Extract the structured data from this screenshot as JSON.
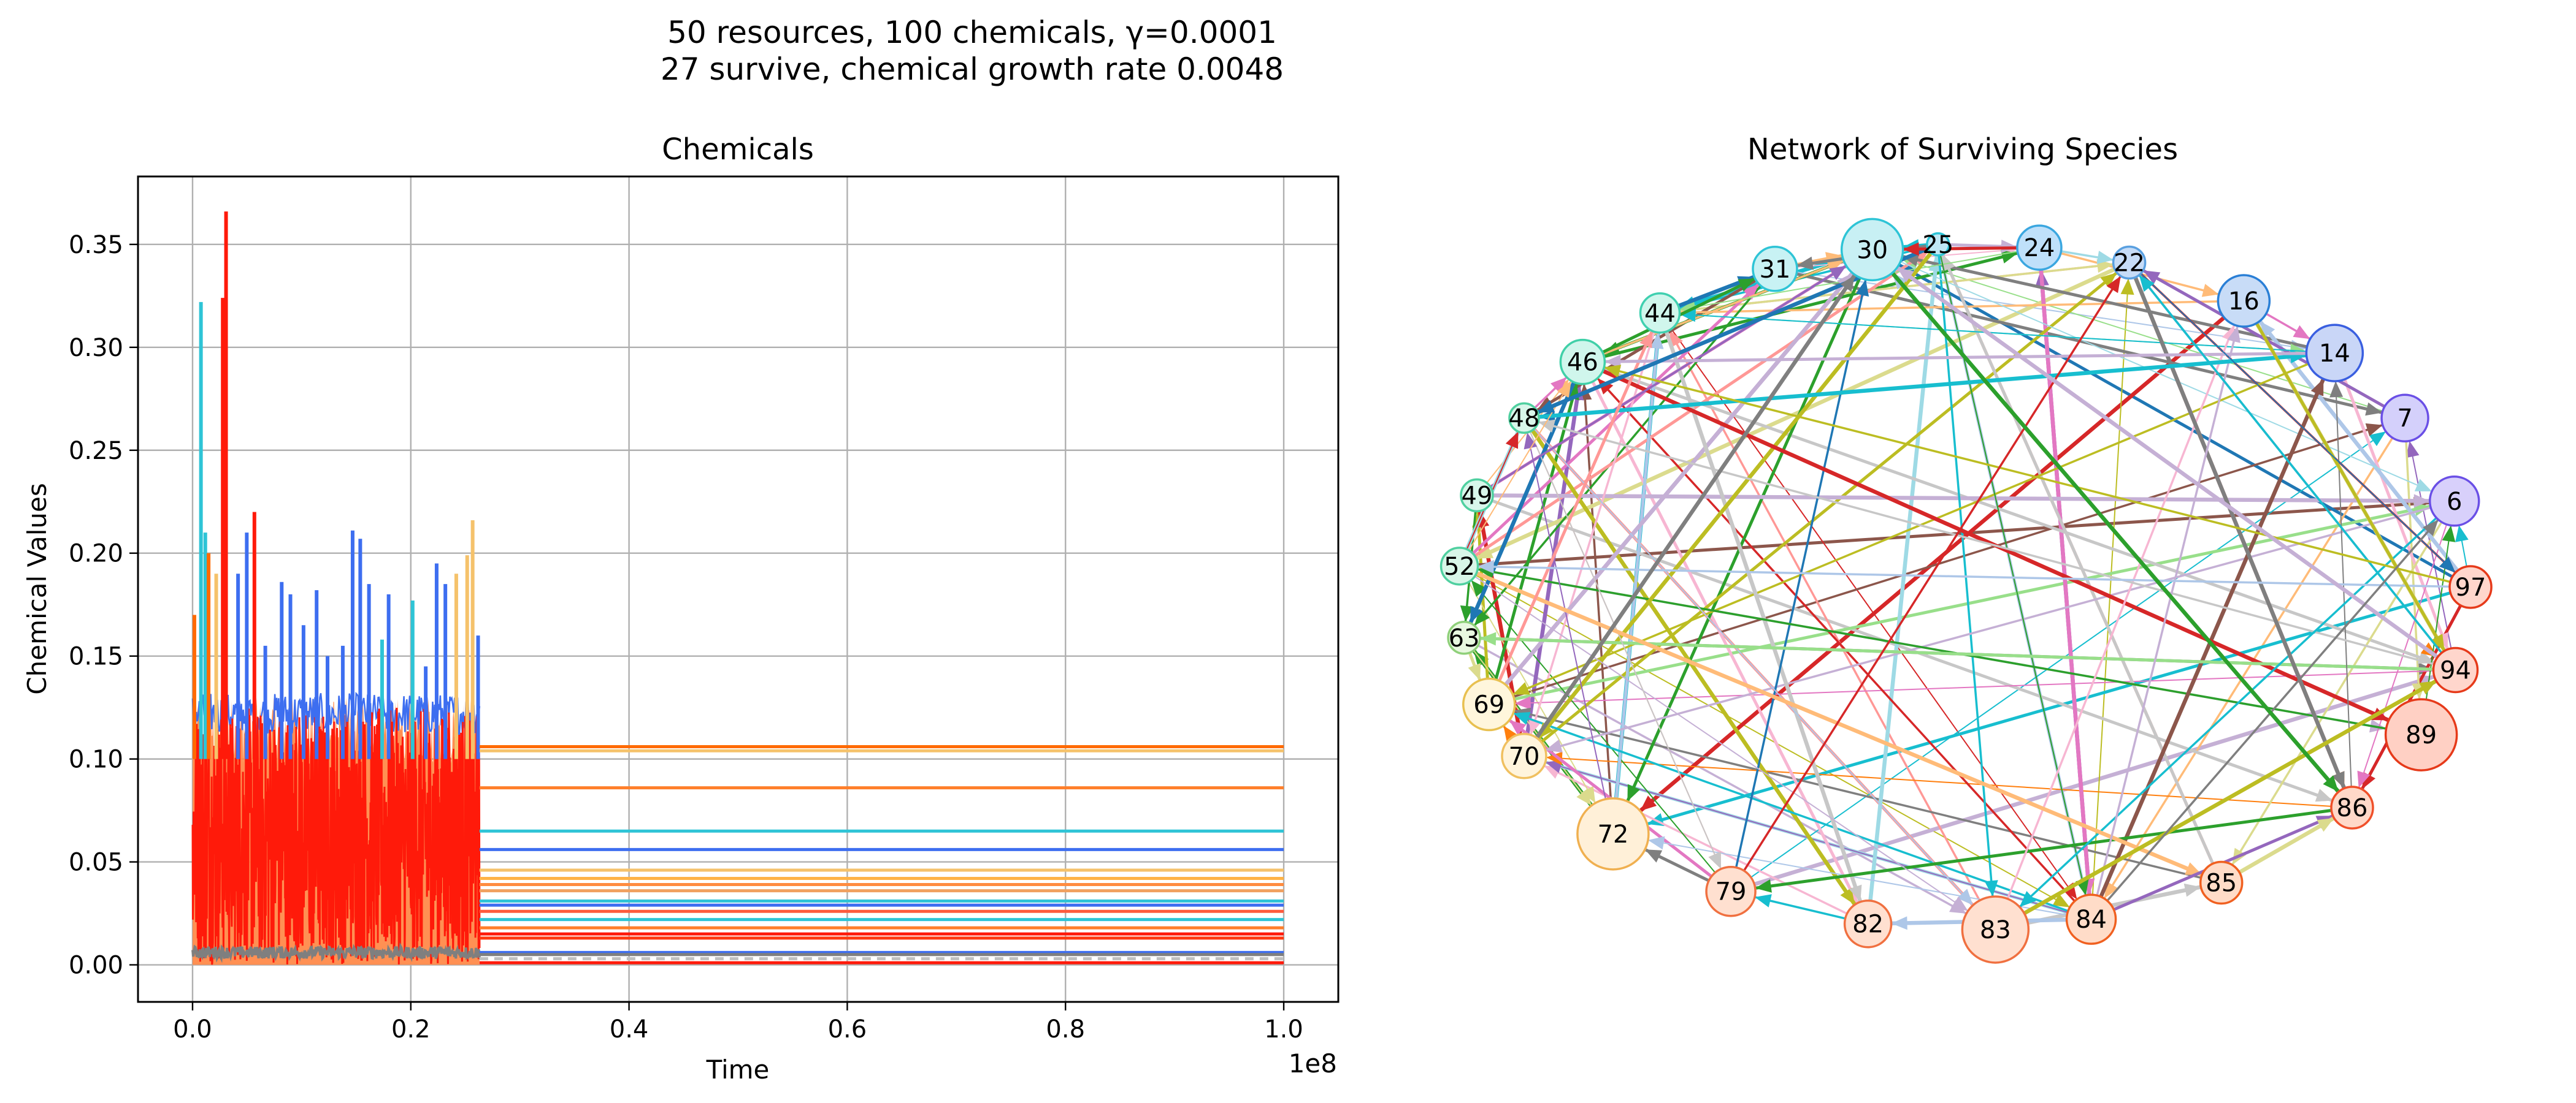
{
  "figure": {
    "title_line1": "50 resources, 100 chemicals, γ=0.0001",
    "title_line2": "27 survive, chemical growth rate 0.0048"
  },
  "chart_data": [
    {
      "type": "line",
      "title": "Chemicals",
      "xlabel": "Time",
      "ylabel": "Chemical Values",
      "x_offset_label": "1e8",
      "xlim": [
        -0.05,
        1.05
      ],
      "ylim": [
        -0.018,
        0.383
      ],
      "x_ticks": [
        0.0,
        0.2,
        0.4,
        0.6,
        0.8,
        1.0
      ],
      "x_tick_labels": [
        "0.0",
        "0.2",
        "0.4",
        "0.6",
        "0.8",
        "1.0"
      ],
      "y_ticks": [
        0.0,
        0.05,
        0.1,
        0.15,
        0.2,
        0.25,
        0.3,
        0.35
      ],
      "y_tick_labels": [
        "0.00",
        "0.05",
        "0.10",
        "0.15",
        "0.20",
        "0.25",
        "0.30",
        "0.35"
      ],
      "grid": true,
      "legend": "none",
      "transient_end_x": 0.263,
      "transient_band": {
        "x_range": [
          0.0,
          0.263
        ],
        "red_level": 0.125,
        "orange_level": 0.13
      },
      "steady_state_series": [
        {
          "color": "#ff6a00",
          "value": 0.106
        },
        {
          "color": "#f5c26b",
          "value": 0.104
        },
        {
          "color": "#ff7f2a",
          "value": 0.086
        },
        {
          "color": "#2ec4d6",
          "value": 0.065
        },
        {
          "color": "#3d6ef0",
          "value": 0.056
        },
        {
          "color": "#f5c26b",
          "value": 0.046
        },
        {
          "color": "#ffb347",
          "value": 0.042
        },
        {
          "color": "#ff8c40",
          "value": 0.039
        },
        {
          "color": "#f0a060",
          "value": 0.036
        },
        {
          "color": "#2ec4d6",
          "value": 0.031
        },
        {
          "color": "#3d6ef0",
          "value": 0.029
        },
        {
          "color": "#ff5a3c",
          "value": 0.026
        },
        {
          "color": "#2ec4d6",
          "value": 0.022
        },
        {
          "color": "#ff7f2a",
          "value": 0.018
        },
        {
          "color": "#ff1a0a",
          "value": 0.015
        },
        {
          "color": "#ff3a10",
          "value": 0.013
        },
        {
          "color": "#3d6ef0",
          "value": 0.006
        },
        {
          "color": "#7f7f7f",
          "value": 0.005
        },
        {
          "color": "#c0c0c0",
          "value": 0.003
        },
        {
          "color": "#ff1a0a",
          "value": 0.001
        }
      ],
      "transient_spikes": [
        {
          "x": 0.0,
          "value": 0.17,
          "color": "#ff6a00"
        },
        {
          "x": 0.006,
          "value": 0.322,
          "color": "#2ec4d6"
        },
        {
          "x": 0.01,
          "value": 0.21,
          "color": "#2ec4d6"
        },
        {
          "x": 0.013,
          "value": 0.2,
          "color": "#ff6a00"
        },
        {
          "x": 0.02,
          "value": 0.19,
          "color": "#f5c26b"
        },
        {
          "x": 0.026,
          "value": 0.324,
          "color": "#ff1a0a"
        },
        {
          "x": 0.029,
          "value": 0.366,
          "color": "#ff1a0a"
        },
        {
          "x": 0.04,
          "value": 0.19,
          "color": "#3d6ef0"
        },
        {
          "x": 0.048,
          "value": 0.21,
          "color": "#3d6ef0"
        },
        {
          "x": 0.055,
          "value": 0.22,
          "color": "#ff1a0a"
        },
        {
          "x": 0.065,
          "value": 0.155,
          "color": "#3d6ef0"
        },
        {
          "x": 0.08,
          "value": 0.186,
          "color": "#3d6ef0"
        },
        {
          "x": 0.088,
          "value": 0.18,
          "color": "#3d6ef0"
        },
        {
          "x": 0.1,
          "value": 0.165,
          "color": "#3d6ef0"
        },
        {
          "x": 0.112,
          "value": 0.182,
          "color": "#3d6ef0"
        },
        {
          "x": 0.122,
          "value": 0.15,
          "color": "#3d6ef0"
        },
        {
          "x": 0.136,
          "value": 0.155,
          "color": "#3d6ef0"
        },
        {
          "x": 0.145,
          "value": 0.211,
          "color": "#3d6ef0"
        },
        {
          "x": 0.152,
          "value": 0.207,
          "color": "#3d6ef0"
        },
        {
          "x": 0.16,
          "value": 0.185,
          "color": "#3d6ef0"
        },
        {
          "x": 0.172,
          "value": 0.158,
          "color": "#2ec4d6"
        },
        {
          "x": 0.178,
          "value": 0.18,
          "color": "#3d6ef0"
        },
        {
          "x": 0.2,
          "value": 0.177,
          "color": "#2ec4d6"
        },
        {
          "x": 0.212,
          "value": 0.145,
          "color": "#3d6ef0"
        },
        {
          "x": 0.222,
          "value": 0.195,
          "color": "#3d6ef0"
        },
        {
          "x": 0.23,
          "value": 0.185,
          "color": "#3d6ef0"
        },
        {
          "x": 0.24,
          "value": 0.19,
          "color": "#f5c26b"
        },
        {
          "x": 0.25,
          "value": 0.199,
          "color": "#f5c26b"
        },
        {
          "x": 0.255,
          "value": 0.216,
          "color": "#f5c26b"
        },
        {
          "x": 0.26,
          "value": 0.16,
          "color": "#3d6ef0"
        }
      ]
    },
    {
      "type": "network",
      "title": "Network of Surviving Species",
      "nodes": [
        {
          "id": "30",
          "angle": 100.5,
          "size": 0.8,
          "fill": "#c8f0f4",
          "stroke": "#2ec4d6"
        },
        {
          "id": "25",
          "angle": 93.0,
          "size": 0.0,
          "fill": "#bfe8f5",
          "stroke": "#2ec4d6"
        },
        {
          "id": "24",
          "angle": 81.5,
          "size": 0.45,
          "fill": "#bfe0fa",
          "stroke": "#3ba7e0"
        },
        {
          "id": "22",
          "angle": 71.0,
          "size": 0.2,
          "fill": "#c6dcf7",
          "stroke": "#5aa0e0"
        },
        {
          "id": "16",
          "angle": 56.5,
          "size": 0.6,
          "fill": "#c8dcf7",
          "stroke": "#2a7fd6"
        },
        {
          "id": "14",
          "angle": 43.0,
          "size": 0.7,
          "fill": "#c9d6f7",
          "stroke": "#3a5fe0"
        },
        {
          "id": "7",
          "angle": 29.5,
          "size": 0.5,
          "fill": "#d4d0fb",
          "stroke": "#6a4fe6"
        },
        {
          "id": "6",
          "angle": 14.5,
          "size": 0.55,
          "fill": "#d8d0fb",
          "stroke": "#6a4fe6"
        },
        {
          "id": "97",
          "angle": 0.0,
          "size": 0.4,
          "fill": "#ffd6cc",
          "stroke": "#e63a1a"
        },
        {
          "id": "94",
          "angle": -14.0,
          "size": 0.45,
          "fill": "#ffd6cc",
          "stroke": "#e63a1a"
        },
        {
          "id": "89",
          "angle": -25.5,
          "size": 1.0,
          "fill": "#ffd0c4",
          "stroke": "#e63a1a"
        },
        {
          "id": "86",
          "angle": -40.0,
          "size": 0.4,
          "fill": "#ffd8c8",
          "stroke": "#f0502a"
        },
        {
          "id": "85",
          "angle": -59.5,
          "size": 0.4,
          "fill": "#ffdcc8",
          "stroke": "#f06020"
        },
        {
          "id": "84",
          "angle": -75.5,
          "size": 0.55,
          "fill": "#ffdcc8",
          "stroke": "#f06020"
        },
        {
          "id": "83",
          "angle": -86.5,
          "size": 0.9,
          "fill": "#ffe0d0",
          "stroke": "#f07040"
        },
        {
          "id": "82",
          "angle": -101.0,
          "size": 0.5,
          "fill": "#ffe0d0",
          "stroke": "#f07040"
        },
        {
          "id": "79",
          "angle": -117.5,
          "size": 0.55,
          "fill": "#ffe0d0",
          "stroke": "#f07040"
        },
        {
          "id": "72",
          "angle": -134.0,
          "size": 1.0,
          "fill": "#fff0d8",
          "stroke": "#f0b050"
        },
        {
          "id": "70",
          "angle": -150.5,
          "size": 0.45,
          "fill": "#fff4dc",
          "stroke": "#f0c060"
        },
        {
          "id": "69",
          "angle": -160.0,
          "size": 0.6,
          "fill": "#fff6dc",
          "stroke": "#e8c050"
        },
        {
          "id": "63",
          "angle": -171.5,
          "size": 0.2,
          "fill": "#e8f8e0",
          "stroke": "#8fd07a"
        },
        {
          "id": "52",
          "angle": 176.5,
          "size": 0.3,
          "fill": "#d8f6e8",
          "stroke": "#50d0a0"
        },
        {
          "id": "49",
          "angle": 164.5,
          "size": 0.2,
          "fill": "#d8f6ea",
          "stroke": "#50d0a0"
        },
        {
          "id": "48",
          "angle": 150.5,
          "size": 0.15,
          "fill": "#d8f6ea",
          "stroke": "#50d0a0"
        },
        {
          "id": "46",
          "angle": 139.0,
          "size": 0.45,
          "fill": "#d0f6ec",
          "stroke": "#40d0a8"
        },
        {
          "id": "44",
          "angle": 127.0,
          "size": 0.35,
          "fill": "#d0f6ec",
          "stroke": "#40d0b0"
        },
        {
          "id": "31",
          "angle": 112.0,
          "size": 0.45,
          "fill": "#c8f2f4",
          "stroke": "#2ec4d6"
        }
      ],
      "edge_palette": [
        "#1f77b4",
        "#ff7f0e",
        "#2ca02c",
        "#d62728",
        "#9467bd",
        "#8c564b",
        "#e377c2",
        "#7f7f7f",
        "#bcbd22",
        "#17becf",
        "#aec7e8",
        "#ffbb78",
        "#98df8a",
        "#ff9896",
        "#c5b0d5",
        "#f7b6d2",
        "#c7c7c7",
        "#dbdb8d",
        "#9edae5"
      ],
      "edge_count": 170,
      "edge_seed": 7
    }
  ]
}
